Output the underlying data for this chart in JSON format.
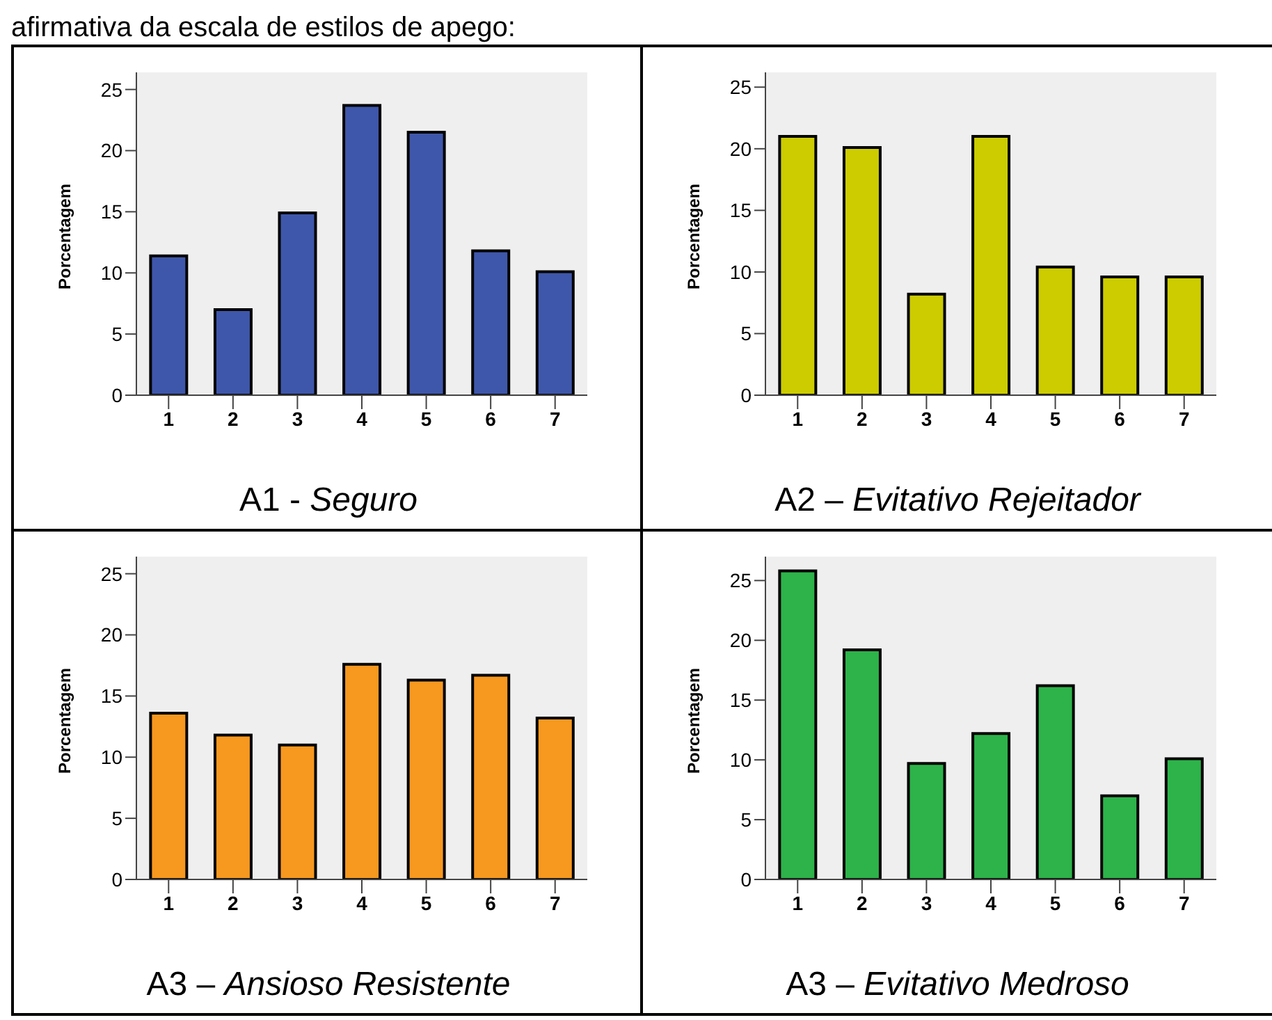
{
  "chart_data": [
    {
      "type": "bar",
      "title": "A1 - Seguro",
      "ylabel": "Porcentagem",
      "annotations": [
        "afirmativa da escala de estilos de apego:"
      ],
      "categories": [
        "1",
        "2",
        "3",
        "4",
        "5",
        "6",
        "7"
      ],
      "values": [
        11.4,
        7.0,
        14.9,
        23.7,
        21.5,
        11.8,
        10.1
      ],
      "color": "#3f57aa",
      "ylim": [
        0,
        26.4
      ],
      "yticks": [
        0,
        5,
        10,
        15,
        20,
        25
      ],
      "grid": false
    },
    {
      "type": "bar",
      "title": "A2 – Evitativo Rejeitador",
      "ylabel": "Porcentagem",
      "categories": [
        "1",
        "2",
        "3",
        "4",
        "5",
        "6",
        "7"
      ],
      "values": [
        21.0,
        20.1,
        8.2,
        21.0,
        10.4,
        9.6,
        9.6
      ],
      "color": "#cccc00",
      "ylim": [
        0,
        26.2
      ],
      "yticks": [
        0,
        5,
        10,
        15,
        20,
        25
      ],
      "grid": false
    },
    {
      "type": "bar",
      "title": "A3 – Ansioso Resistente",
      "ylabel": "Porcentagem",
      "categories": [
        "1",
        "2",
        "3",
        "4",
        "5",
        "6",
        "7"
      ],
      "values": [
        13.6,
        11.8,
        11.0,
        17.6,
        16.3,
        16.7,
        13.2
      ],
      "color": "#f7981f",
      "ylim": [
        0,
        26.4
      ],
      "yticks": [
        0,
        5,
        10,
        15,
        20,
        25
      ],
      "grid": false
    },
    {
      "type": "bar",
      "title": "A3 – Evitativo Medroso",
      "ylabel": "Porcentagem",
      "categories": [
        "1",
        "2",
        "3",
        "4",
        "5",
        "6",
        "7"
      ],
      "values": [
        25.8,
        19.2,
        9.7,
        12.2,
        16.2,
        7.0,
        10.1
      ],
      "color": "#2db34a",
      "ylim": [
        0,
        27.0
      ],
      "yticks": [
        0,
        5,
        10,
        15,
        20,
        25
      ],
      "grid": false
    }
  ]
}
